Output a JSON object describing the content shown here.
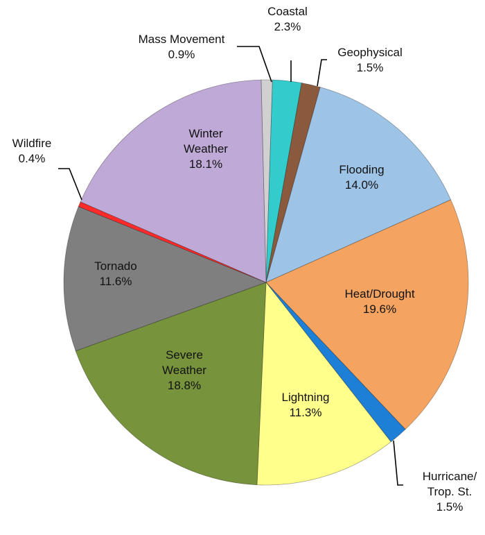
{
  "chart_data": {
    "type": "pie",
    "title": "",
    "start_category": "Mass Movement",
    "direction": "clockwise",
    "legend": "none",
    "slices": [
      {
        "key": "mass_movement",
        "name": "Mass Movement",
        "label_lines": [
          "Mass Movement"
        ],
        "value": 0.9,
        "value_label": "0.9%",
        "color": "#d0d0d0",
        "label_pos": "outside"
      },
      {
        "key": "coastal",
        "name": "Coastal",
        "label_lines": [
          "Coastal"
        ],
        "value": 2.3,
        "value_label": "2.3%",
        "color": "#33cccc",
        "label_pos": "outside"
      },
      {
        "key": "geophysical",
        "name": "Geophysical",
        "label_lines": [
          "Geophysical"
        ],
        "value": 1.5,
        "value_label": "1.5%",
        "color": "#8b5a3c",
        "label_pos": "outside"
      },
      {
        "key": "flooding",
        "name": "Flooding",
        "label_lines": [
          "Flooding"
        ],
        "value": 14.0,
        "value_label": "14.0%",
        "color": "#9dc3e6",
        "label_pos": "inside"
      },
      {
        "key": "heat_drought",
        "name": "Heat/Drought",
        "label_lines": [
          "Heat/Drought"
        ],
        "value": 19.6,
        "value_label": "19.6%",
        "color": "#f4a460",
        "label_pos": "inside"
      },
      {
        "key": "hurricane",
        "name": "Hurricane/Trop. St.",
        "label_lines": [
          "Hurricane/",
          "Trop. St."
        ],
        "value": 1.5,
        "value_label": "1.5%",
        "color": "#1e7fd6",
        "label_pos": "outside"
      },
      {
        "key": "lightning",
        "name": "Lightning",
        "label_lines": [
          "Lightning"
        ],
        "value": 11.3,
        "value_label": "11.3%",
        "color": "#ffff8c",
        "label_pos": "inside"
      },
      {
        "key": "severe_weather",
        "name": "Severe Weather",
        "label_lines": [
          "Severe",
          "Weather"
        ],
        "value": 18.8,
        "value_label": "18.8%",
        "color": "#77933c",
        "label_pos": "inside"
      },
      {
        "key": "tornado",
        "name": "Tornado",
        "label_lines": [
          "Tornado"
        ],
        "value": 11.6,
        "value_label": "11.6%",
        "color": "#7f7f7f",
        "label_pos": "inside"
      },
      {
        "key": "wildfire",
        "name": "Wildfire",
        "label_lines": [
          "Wildfire"
        ],
        "value": 0.4,
        "value_label": "0.4%",
        "color": "#ff2a2a",
        "label_pos": "outside"
      },
      {
        "key": "winter_weather",
        "name": "Winter Weather",
        "label_lines": [
          "Winter",
          "Weather"
        ],
        "value": 18.1,
        "value_label": "18.1%",
        "color": "#bfa9d6",
        "label_pos": "inside"
      }
    ]
  }
}
